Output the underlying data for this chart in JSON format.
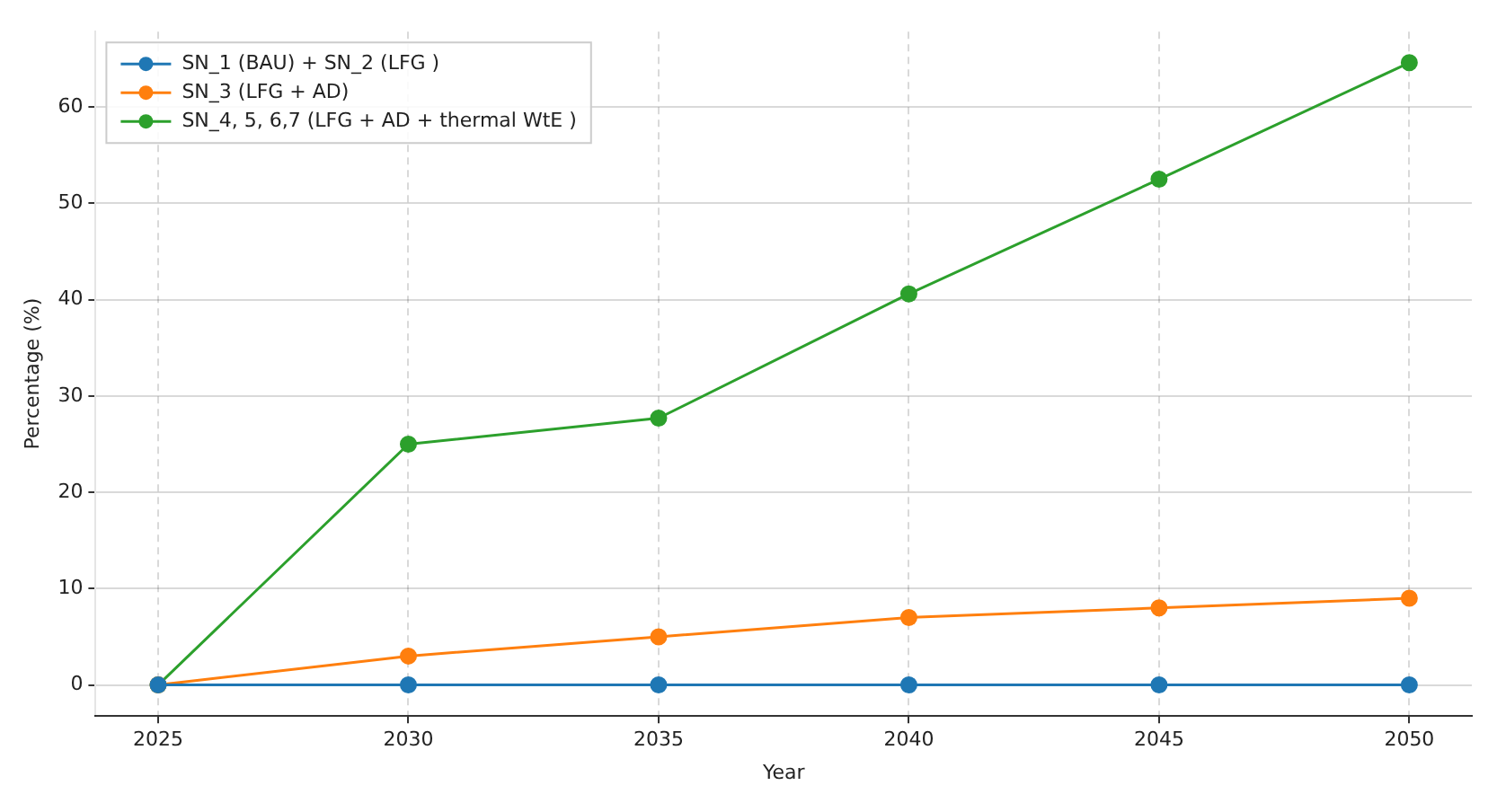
{
  "chart_data": {
    "type": "line",
    "xlabel": "Year",
    "ylabel": "Percentage (%)",
    "x": [
      2025,
      2030,
      2035,
      2040,
      2045,
      2050
    ],
    "series": [
      {
        "name": "SN_1 (BAU) + SN_2 (LFG )",
        "color": "#1f77b4",
        "values": [
          0,
          0,
          0,
          0,
          0,
          0
        ]
      },
      {
        "name": "SN_3 (LFG + AD)",
        "color": "#ff7f0e",
        "values": [
          0,
          3,
          5,
          7,
          8,
          9
        ]
      },
      {
        "name": "SN_4, 5, 6,7 (LFG + AD + thermal WtE )",
        "color": "#2ca02c",
        "values": [
          0,
          25,
          27.7,
          40.6,
          52.5,
          64.6
        ]
      }
    ],
    "xlim": [
      2023.75,
      2051.25
    ],
    "xticks": [
      2025,
      2030,
      2035,
      2040,
      2045,
      2050
    ],
    "ylim": [
      -3.23,
      67.83
    ],
    "yticks": [
      0,
      10,
      20,
      30,
      40,
      50,
      60
    ],
    "grid": true,
    "legend": "top left",
    "marker": "circle",
    "line_style": "solid"
  }
}
